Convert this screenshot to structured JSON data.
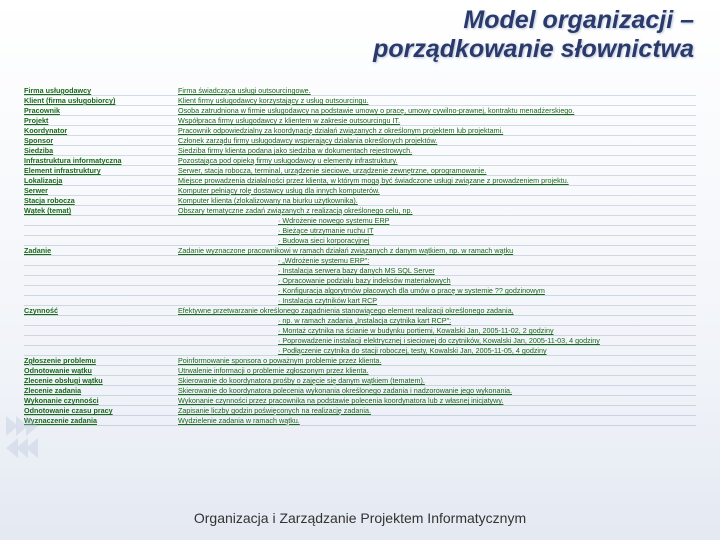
{
  "title": "Model organizacji – porządkowanie słownictwa",
  "footer": "Organizacja i Zarządzanie Projektem Informatycznym",
  "rows": [
    {
      "term": "Firma usługodawcy",
      "def": "Firma świadcząca usługi outsourcingowe."
    },
    {
      "term": "Klient (firma usługobiorcy)",
      "def": "Klient firmy usługodawcy korzystający z usług outsourcingu."
    },
    {
      "term": "Pracownik",
      "def": "Osoba zatrudniona w firmie usługodawcy na podstawie umowy o pracę, umowy cywilno-prawnej, kontraktu menadżerskiego."
    },
    {
      "term": "Projekt",
      "def": "Współpraca firmy usługodawcy z klientem w zakresie outsourcingu IT."
    },
    {
      "term": "Koordynator",
      "def": "Pracownik odpowiedzialny za koordynację działań związanych z określonym projektem lub projektami."
    },
    {
      "term": "Sponsor",
      "def": "Członek zarządu firmy usługodawcy wspierający działania określonych projektów."
    },
    {
      "term": "Siedziba",
      "def": "Siedziba firmy klienta podana jako siedziba w dokumentach rejestrowych."
    },
    {
      "term": "Infrastruktura informatyczna",
      "def": "Pozostająca pod opieką firmy usługodawcy u elementy infrastruktury."
    },
    {
      "term": "Element infrastruktury",
      "def": "Serwer, stacja robocza, terminal, urządzenie sieciowe, urządzenie zewnętrzne, oprogramowanie."
    },
    {
      "term": "Lokalizacja",
      "def": "Miejsce prowadzenia działalności przez klienta, w którym mogą być świadczone usługi związane z prowadzeniem projektu."
    },
    {
      "term": "Serwer",
      "def": "Komputer pełniący rolę dostawcy usług dla innych komputerów."
    },
    {
      "term": "Stacja robocza",
      "def": "Komputer klienta (zlokalizowany na biurku użytkownika)."
    },
    {
      "term": "Wątek (temat)",
      "def": "Obszary tematyczne zadań związanych z realizacją określonego celu, np."
    },
    {
      "term": "",
      "sub": true,
      "def": "Wdrożenie nowego systemu ERP"
    },
    {
      "term": "",
      "sub": true,
      "def": "Bieżące utrzymanie ruchu IT"
    },
    {
      "term": "",
      "sub": true,
      "def": "Budowa sieci korporacyjnej"
    },
    {
      "term": "Zadanie",
      "def": "Zadanie wyznaczone pracownikowi w ramach działań związanych z danym wątkiem, np. w ramach wątku"
    },
    {
      "term": "",
      "sub": true,
      "def": "„Wdrożenie systemu ERP\":"
    },
    {
      "term": "",
      "sub": true,
      "def": "Instalacja serwera bazy danych MS SQL Server"
    },
    {
      "term": "",
      "sub": true,
      "def": "Opracowanie podziału bazy indeksów materiałowych"
    },
    {
      "term": "",
      "sub": true,
      "def": "Konfiguracja algorytmów płacowych dla umów o pracę w systemie ?? godzinowym"
    },
    {
      "term": "",
      "sub": true,
      "def": "Instalacja czytników kart RCP"
    },
    {
      "term": "Czynność",
      "def": "Efektywne przetwarzanie określonego zagadnienia stanowiącego element realizacji określonego zadania,"
    },
    {
      "term": "",
      "sub": true,
      "def": "np. w ramach zadania „Instalacja czytnika kart RCP\":"
    },
    {
      "term": "",
      "sub": true,
      "def": "Montaż czytnika na ścianie w budynku portierni, Kowalski Jan, 2005-11-02, 2 godziny"
    },
    {
      "term": "",
      "sub": true,
      "def": "Poprowadzenie instalacji elektrycznej i sieciowej do czytników, Kowalski Jan, 2005-11-03, 4 godziny"
    },
    {
      "term": "",
      "sub": true,
      "def": "Podłączenie czytnika do stacji roboczej, testy, Kowalski Jan, 2005-11-05, 4 godziny"
    },
    {
      "term": "Zgłoszenie problemu",
      "def": "Poinformowanie sponsora o poważnym problemie przez klienta."
    },
    {
      "term": "Odnotowanie wątku",
      "def": "Utrwalenie informacji o problemie zgłoszonym przez klienta."
    },
    {
      "term": "Zlecenie obsługi wątku",
      "def": "Skierowanie do koordynatora prośby o zajęcie się danym wątkiem (tematem)."
    },
    {
      "term": "Zlecenie zadania",
      "def": "Skierowanie do koordynatora polecenia wykonania określonego zadania i nadzorowanie jego wykonania."
    },
    {
      "term": "Wykonanie czynności",
      "def": "Wykonanie czynności przez pracownika na podstawie polecenia koordynatora lub z własnej inicjatywy."
    },
    {
      "term": "Odnotowanie czasu pracy",
      "def": "Zapisanie liczby godzin poświęconych na realizację zadania."
    },
    {
      "term": "Wyznaczenie zadania",
      "def": "Wydzielenie zadania w ramach wątku."
    }
  ]
}
